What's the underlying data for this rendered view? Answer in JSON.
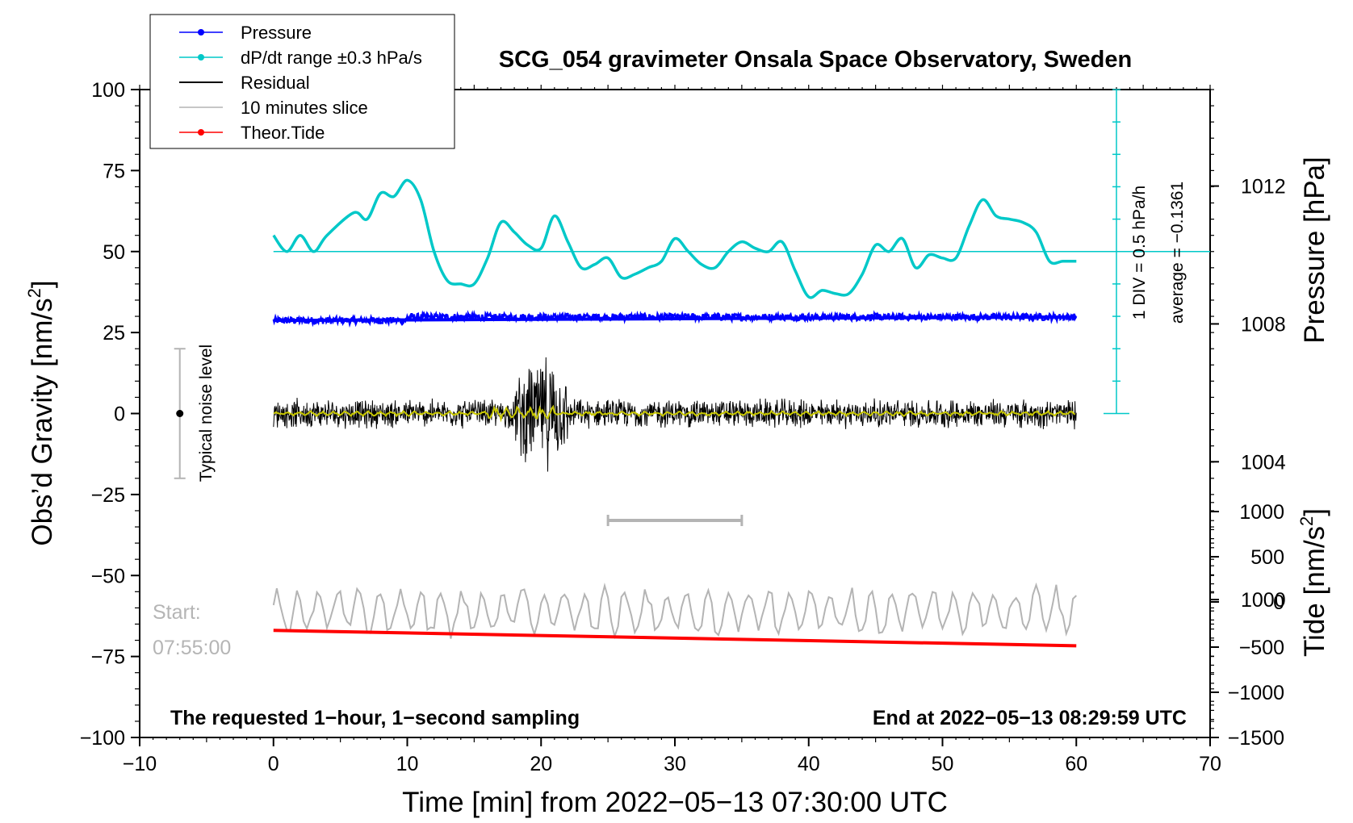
{
  "chart_data": {
    "type": "line",
    "title": "SCG_054 gravimeter Onsala Space Observatory, Sweden",
    "xlabel": "Time [min] from 2022−05−13 07:30:00 UTC",
    "ylabel_left": "Obs’d Gravity [nm/s²]",
    "ylabel_left_parts": {
      "main": "Obs’d Gravity [nm/s",
      "sup": "2",
      "tail": "]"
    },
    "ylabel_right_top": "Pressure [hPa]",
    "ylabel_right_bottom": "Tide [nm/s²]",
    "ylabel_right_bottom_parts": {
      "main": "Tide [nm/s",
      "sup": "2",
      "tail": "]"
    },
    "xlim": [
      -10,
      70
    ],
    "ylim": [
      -100,
      100
    ],
    "x_ticks": [
      -10,
      0,
      10,
      20,
      30,
      40,
      50,
      60,
      70
    ],
    "x_tick_labels": [
      "−10",
      "0",
      "10",
      "20",
      "30",
      "40",
      "50",
      "60",
      "70"
    ],
    "y_ticks": [
      -100,
      -75,
      -50,
      -25,
      0,
      25,
      50,
      75,
      100
    ],
    "y_tick_labels": [
      "−100",
      "−75",
      "−50",
      "−25",
      "0",
      "25",
      "50",
      "75",
      "100"
    ],
    "pressure_axis": {
      "range_hPa": [
        996,
        1014.8
      ],
      "ticks": [
        1000,
        1004,
        1008,
        1012
      ],
      "tick_labels": [
        "1000",
        "1004",
        "1008",
        "1012"
      ]
    },
    "tide_axis": {
      "range": [
        -1500,
        1500
      ],
      "ticks": [
        -1500,
        -1000,
        -500,
        0,
        500,
        1000
      ],
      "tick_labels": [
        "−1500",
        "−1000",
        "−500",
        "0",
        "500",
        "1000"
      ]
    },
    "legend": [
      {
        "label": "Pressure",
        "color": "#0000ff",
        "marker": true
      },
      {
        "label": "dP/dt range ±0.3 hPa/s",
        "color": "#00c8c8",
        "marker": true
      },
      {
        "label": "Residual",
        "color": "#000000",
        "marker": false
      },
      {
        "label": "10 minutes slice",
        "color": "#b4b4b4",
        "marker": false
      },
      {
        "label": "Theor.Tide",
        "color": "#ff0000",
        "marker": true
      }
    ],
    "series": [
      {
        "name": "Pressure",
        "color": "#0000ff",
        "axis": "pressure",
        "x": [
          0,
          10,
          20,
          30,
          40,
          50,
          60
        ],
        "values": [
          1008.1,
          1008.2,
          1008.2,
          1008.2,
          1008.2,
          1008.2,
          1008.2
        ]
      },
      {
        "name": "dP/dt",
        "color": "#00c8c8",
        "axis": "gravity",
        "x": [
          0,
          1,
          2,
          3,
          4,
          6,
          7,
          8,
          9,
          10,
          11,
          12,
          13,
          14,
          15,
          16,
          17,
          18,
          19,
          20,
          21,
          22,
          23,
          24,
          25,
          26,
          27,
          28,
          29,
          30,
          31,
          32,
          33,
          34,
          35,
          36,
          37,
          38,
          39,
          40,
          41,
          42,
          43,
          44,
          45,
          46,
          47,
          48,
          49,
          50,
          51,
          52,
          53,
          54,
          55,
          56,
          57,
          58,
          59,
          60
        ],
        "values": [
          55,
          50,
          55,
          50,
          55,
          62,
          60,
          68,
          67,
          72,
          66,
          50,
          41,
          40,
          40,
          48,
          59,
          56,
          52,
          51,
          61,
          53,
          45,
          46,
          48,
          42,
          43,
          45,
          47,
          54,
          50,
          46,
          45,
          50,
          53,
          51,
          50,
          53,
          44,
          36,
          38,
          37,
          37,
          43,
          52,
          50,
          54,
          45,
          49,
          48,
          48,
          58,
          66,
          61,
          60,
          59,
          56,
          47,
          47,
          47
        ]
      },
      {
        "name": "Residual",
        "color": "#000000",
        "axis": "gravity",
        "x": [
          0,
          60
        ],
        "values": [
          0,
          0
        ],
        "noise_amplitude": 5,
        "burst_window": [
          18,
          22
        ],
        "burst_amplitude": 20
      },
      {
        "name": "Residual smoothed",
        "color": "#c8c800",
        "axis": "gravity",
        "x": [
          0,
          60
        ],
        "values": [
          0,
          0
        ]
      },
      {
        "name": "10 minutes slice",
        "color": "#b4b4b4",
        "axis": "gravity",
        "x": [
          0,
          60
        ],
        "values": [
          -61,
          -61
        ]
      },
      {
        "name": "Theor.Tide",
        "color": "#ff0000",
        "axis": "tide",
        "x": [
          0,
          60
        ],
        "values": [
          -315,
          -485
        ]
      }
    ],
    "annotations": {
      "noise_bar": {
        "x": -7,
        "y_range": [
          -20,
          20
        ],
        "label": "Typical noise level"
      },
      "slice_bar": {
        "x_range": [
          25,
          35
        ],
        "y": -33
      },
      "pressure_scale_text": "1 DIV = 0.5 hPa/h",
      "average_text": "average = −0.1361",
      "start_label": "Start:",
      "start_time": "07:55:00",
      "note_left": "The requested 1−hour, 1−second sampling",
      "note_right": "End at 2022−05−13 08:29:59 UTC"
    }
  }
}
